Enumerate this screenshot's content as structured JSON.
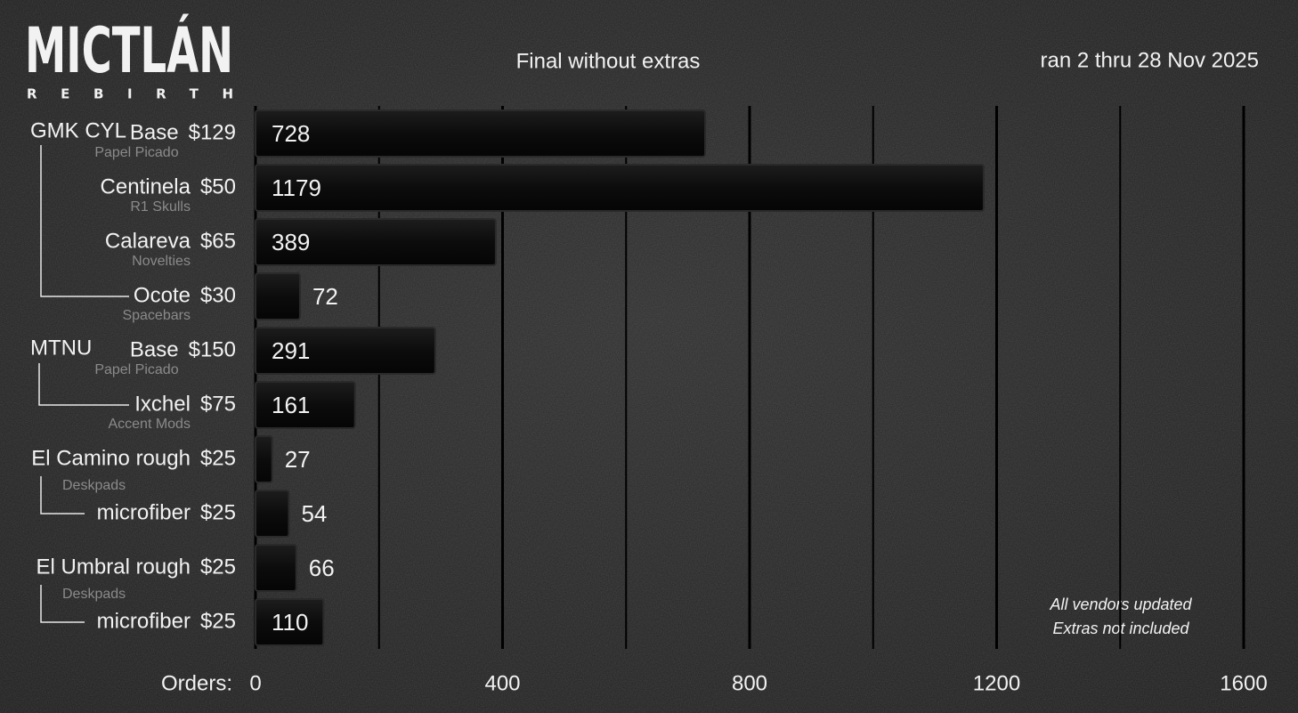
{
  "chart_data": {
    "type": "bar",
    "orientation": "horizontal",
    "logo": "MICTLÁN",
    "logo_subtitle": "REBIRTH",
    "title": "Final without extras",
    "subtitle": "ran 2 thru 28 Nov 2025",
    "groups": [
      "GMK CYL",
      null,
      null,
      null,
      "MTNU",
      null,
      null,
      null,
      null,
      null
    ],
    "categories": [
      "Base",
      "Centinela",
      "Calareva",
      "Ocote",
      "Base",
      "Ixchel",
      "El Camino rough",
      "microfiber",
      "El Umbral rough",
      "microfiber"
    ],
    "prices": [
      "$129",
      "$50",
      "$65",
      "$30",
      "$150",
      "$75",
      "$25",
      "$25",
      "$25",
      "$25"
    ],
    "sublabels": [
      "Papel Picado",
      "R1 Skulls",
      "Novelties",
      "Spacebars",
      "Papel Picado",
      "Accent Mods",
      "Deskpads",
      null,
      "Deskpads",
      null
    ],
    "values": [
      728,
      1179,
      389,
      72,
      291,
      161,
      27,
      54,
      66,
      110
    ],
    "colors": [
      "#e0308a",
      "#ec7a22",
      "#e9a71f",
      "#16a3ab",
      "#7b45d6",
      "#e0308a",
      "#ec7a22",
      "#e9a71f",
      "#16a3ab",
      "#7b45d6"
    ],
    "xlabel": "Orders:",
    "xlim": [
      0,
      1600
    ],
    "xticks": [
      0,
      400,
      800,
      1200,
      1600
    ],
    "x_minor_ticks": [
      200,
      600,
      1000,
      1400
    ],
    "grid": true,
    "notes": [
      "All vendors updated",
      "Extras not included"
    ]
  }
}
